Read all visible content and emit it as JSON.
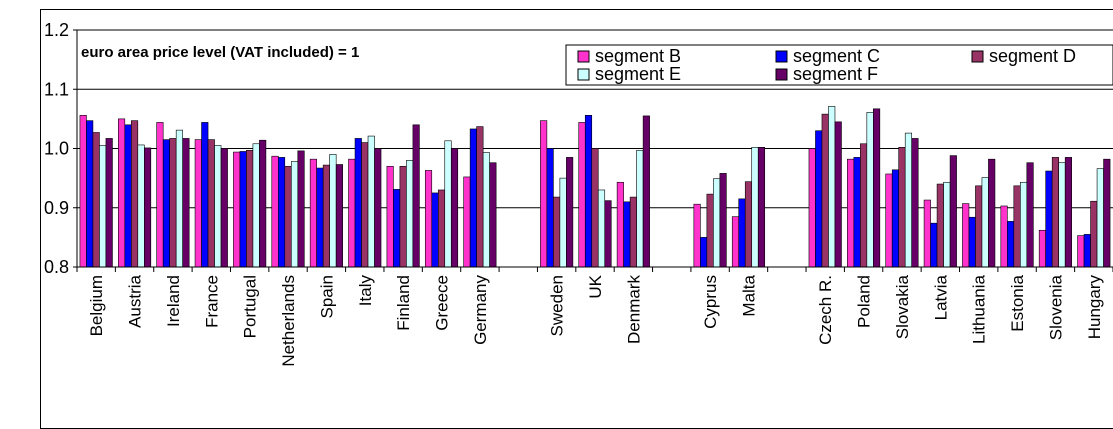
{
  "chart_data": {
    "type": "bar",
    "title": "",
    "annotation": "euro area price level (VAT included) = 1",
    "xlabel": "",
    "ylabel": "",
    "ylim": [
      0.8,
      1.2
    ],
    "yticks": [
      "0.8",
      "0.9",
      "1.0",
      "1.1",
      "1.2"
    ],
    "grid": true,
    "legend_position": "top-right",
    "categories": [
      "Belgium",
      "Austria",
      "Ireland",
      "France",
      "Portugal",
      "Netherlands",
      "Spain",
      "Italy",
      "Finland",
      "Greece",
      "Germany",
      "",
      "Sweden",
      "UK",
      "Denmark",
      "",
      "Cyprus",
      "Malta",
      "",
      "Czech R.",
      "Poland",
      "Slovakia",
      "Latvia",
      "Lithuania",
      "Estonia",
      "Slovenia",
      "Hungary"
    ],
    "series": [
      {
        "name": "segment B",
        "color": "#FF33CC",
        "values": [
          1.056,
          1.05,
          1.044,
          1.015,
          0.994,
          0.987,
          0.982,
          0.982,
          0.97,
          0.963,
          0.952,
          null,
          1.047,
          1.044,
          0.943,
          null,
          0.906,
          0.885,
          null,
          1.0,
          0.982,
          0.957,
          0.913,
          0.907,
          0.903,
          0.862,
          0.853
        ]
      },
      {
        "name": "segment C",
        "color": "#0000FF",
        "values": [
          1.047,
          1.04,
          1.015,
          1.044,
          0.995,
          0.985,
          0.967,
          1.017,
          0.931,
          0.925,
          1.033,
          null,
          1.0,
          1.056,
          0.91,
          null,
          0.85,
          0.915,
          null,
          1.03,
          0.985,
          0.964,
          0.874,
          0.884,
          0.877,
          0.962,
          0.855
        ]
      },
      {
        "name": "segment D",
        "color": "#993366",
        "values": [
          1.027,
          1.047,
          1.017,
          1.015,
          0.997,
          0.97,
          0.972,
          1.01,
          0.97,
          0.93,
          1.037,
          null,
          0.918,
          1.0,
          0.918,
          null,
          0.923,
          0.944,
          null,
          1.058,
          1.008,
          1.002,
          0.94,
          0.937,
          0.937,
          0.985,
          0.911
        ]
      },
      {
        "name": "segment E",
        "color": "#CCFFFF",
        "values": [
          1.005,
          1.006,
          1.031,
          1.005,
          1.008,
          0.978,
          0.99,
          1.021,
          0.98,
          1.013,
          0.993,
          null,
          0.95,
          0.93,
          0.997,
          null,
          0.949,
          1.002,
          null,
          1.071,
          1.061,
          1.026,
          0.943,
          0.951,
          0.943,
          0.976,
          0.966
        ]
      },
      {
        "name": "segment F",
        "color": "#660066",
        "values": [
          1.017,
          1.001,
          1.017,
          1.0,
          1.014,
          0.996,
          0.973,
          1.0,
          1.04,
          1.0,
          0.976,
          null,
          0.985,
          0.912,
          1.055,
          null,
          0.958,
          1.002,
          null,
          1.045,
          1.067,
          1.017,
          0.988,
          0.982,
          0.976,
          0.985,
          0.982
        ]
      }
    ]
  }
}
